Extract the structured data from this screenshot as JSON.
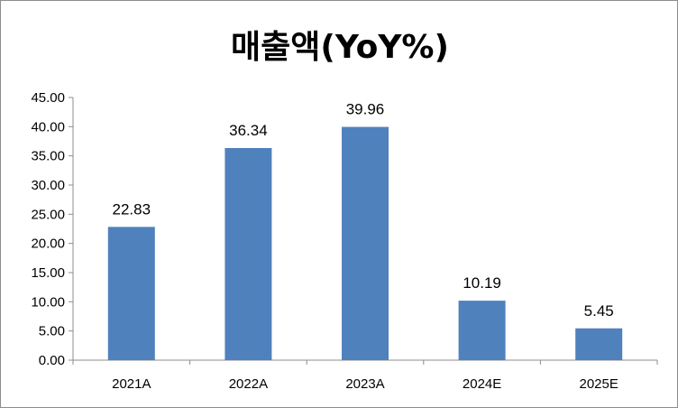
{
  "chart_data": {
    "type": "bar",
    "title": "매출액(YoY%)",
    "categories": [
      "2021A",
      "2022A",
      "2023A",
      "2024E",
      "2025E"
    ],
    "values": [
      22.83,
      36.34,
      39.96,
      10.19,
      5.45
    ],
    "data_labels": [
      "22.83",
      "36.34",
      "39.96",
      "10.19",
      "5.45"
    ],
    "y_ticks": [
      "0.00",
      "5.00",
      "10.00",
      "15.00",
      "20.00",
      "25.00",
      "30.00",
      "35.00",
      "40.00",
      "45.00"
    ],
    "ylim": [
      0,
      45
    ],
    "xlabel": "",
    "ylabel": "",
    "grid": false,
    "legend": "none",
    "bar_color": "#4f81bd"
  }
}
